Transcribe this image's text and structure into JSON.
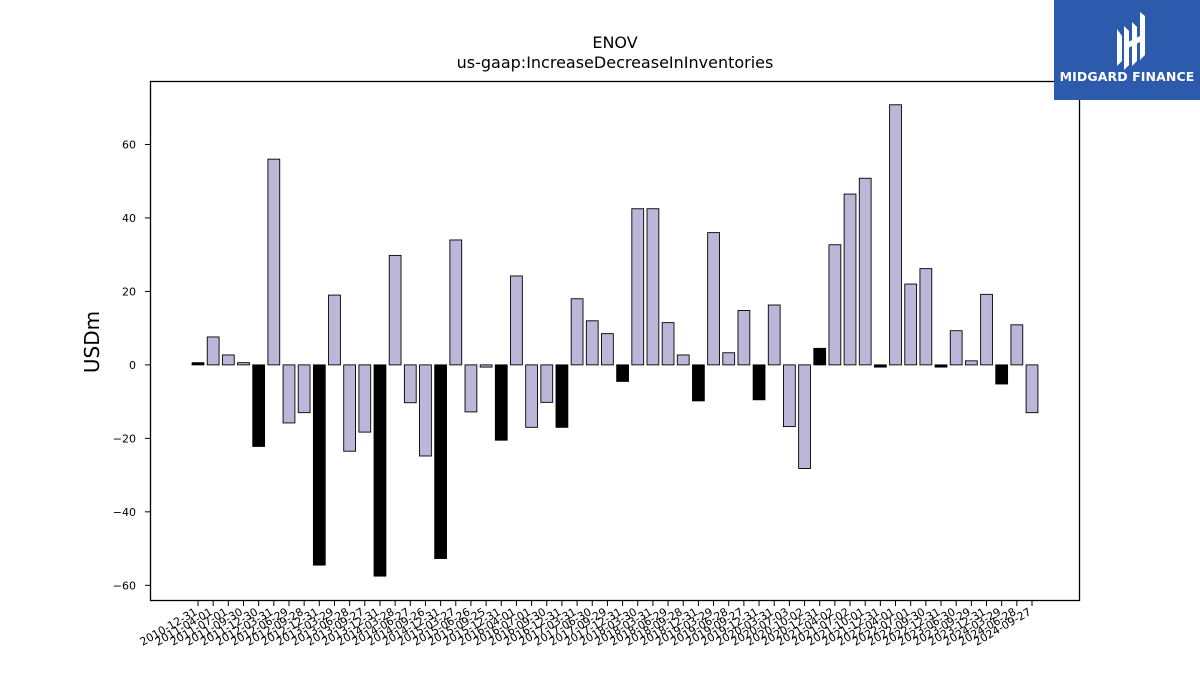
{
  "watermark": {
    "text": "MIDGARD FINANCE",
    "logo": "midgard-logo-icon",
    "background": "#2c5aad"
  },
  "chart_data": {
    "type": "bar",
    "title": "ENOV",
    "subtitle": "us-gaap:IncreaseDecreaseInInventories",
    "xlabel": "",
    "ylabel": "USDm",
    "ylim": [
      -64,
      77
    ],
    "yticks": [
      -60,
      -40,
      -20,
      0,
      20,
      40,
      60
    ],
    "grid": false,
    "legend": "none",
    "colors": {
      "positive_fill": "#bcb7d9",
      "black_fill": "#000000",
      "edge": "#000000"
    },
    "categories": [
      "2010-12-31",
      "2011-04-01",
      "2011-07-01",
      "2011-09-30",
      "2011-12-30",
      "2012-03-31",
      "2012-06-29",
      "2012-09-28",
      "2012-12-31",
      "2013-03-29",
      "2013-06-28",
      "2013-09-27",
      "2013-12-31",
      "2014-03-28",
      "2014-06-27",
      "2014-09-26",
      "2014-12-31",
      "2015-03-27",
      "2015-06-26",
      "2015-09-25",
      "2015-12-31",
      "2016-04-01",
      "2016-07-01",
      "2016-09-30",
      "2016-12-31",
      "2017-03-31",
      "2017-06-30",
      "2017-09-29",
      "2017-12-31",
      "2018-03-30",
      "2018-03-31",
      "2018-06-29",
      "2018-09-28",
      "2018-12-31",
      "2019-03-29",
      "2019-06-28",
      "2019-09-27",
      "2019-12-31",
      "2020-03-31",
      "2020-07-03",
      "2020-10-02",
      "2020-12-31",
      "2021-04-02",
      "2021-07-02",
      "2021-10-01",
      "2021-12-31",
      "2022-04-01",
      "2022-07-01",
      "2022-09-30",
      "2022-12-31",
      "2023-06-30",
      "2023-09-29",
      "2023-12-31",
      "2024-03-29",
      "2024-06-28",
      "2024-09-27"
    ],
    "values": [
      0.6,
      7.6,
      2.7,
      0.6,
      -22.2,
      56.0,
      -15.8,
      -13.0,
      -54.5,
      19.0,
      -23.5,
      -18.3,
      -57.5,
      29.8,
      -10.3,
      -24.8,
      -52.7,
      34.0,
      -12.8,
      -0.6,
      -20.5,
      24.2,
      -17.0,
      -10.2,
      -17.0,
      18.0,
      12.0,
      8.5,
      -4.5,
      42.5,
      42.5,
      11.5,
      2.7,
      -9.8,
      36.0,
      3.3,
      14.8,
      -9.5,
      16.3,
      -16.8,
      -28.2,
      4.5,
      32.7,
      46.5,
      50.8,
      -0.6,
      70.8,
      22.0,
      26.2,
      -0.6,
      9.3,
      1.1,
      19.2,
      -5.2,
      10.9,
      -13.0
    ],
    "fill": [
      "black",
      "blue",
      "blue",
      "blue",
      "black",
      "blue",
      "blue",
      "blue",
      "black",
      "blue",
      "blue",
      "blue",
      "black",
      "blue",
      "blue",
      "blue",
      "black",
      "blue",
      "blue",
      "blue",
      "black",
      "blue",
      "blue",
      "blue",
      "black",
      "blue",
      "blue",
      "blue",
      "black",
      "blue",
      "blue",
      "blue",
      "blue",
      "black",
      "blue",
      "blue",
      "blue",
      "black",
      "blue",
      "blue",
      "blue",
      "black",
      "blue",
      "blue",
      "blue",
      "black",
      "blue",
      "blue",
      "blue",
      "black",
      "blue",
      "blue",
      "blue",
      "black",
      "blue",
      "blue"
    ]
  }
}
